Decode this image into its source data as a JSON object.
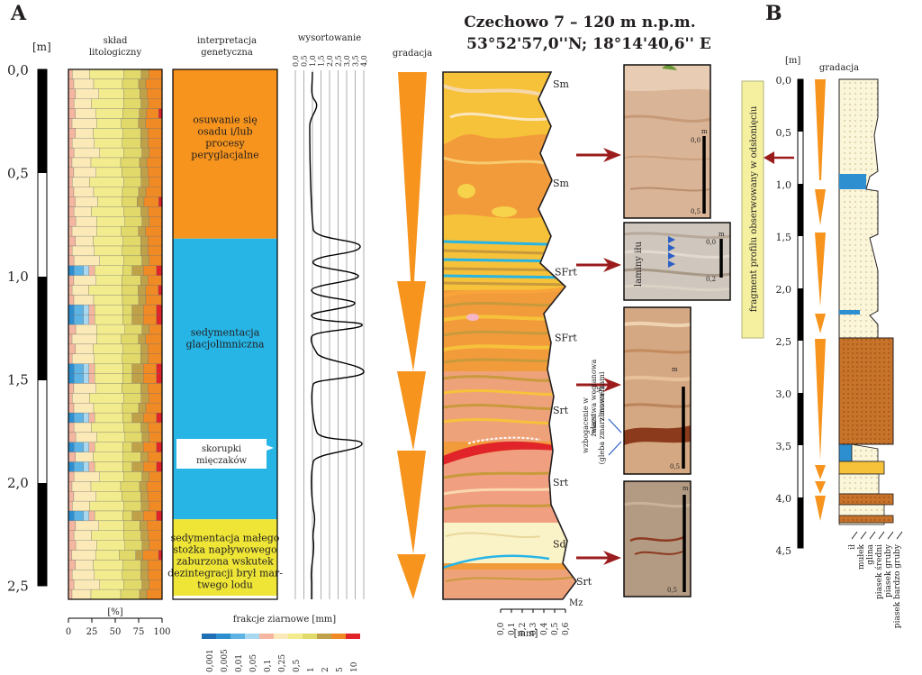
{
  "panel_a": {
    "label": "A",
    "depth_unit": "[m]",
    "depth_ticks": [
      "0,0",
      "0,5",
      "1,0",
      "1,5",
      "2,0",
      "2,5"
    ],
    "lithology_header": [
      "skład",
      "litologiczny"
    ],
    "percent_label": "[%]",
    "percent_ticks": [
      "0",
      "25",
      "50",
      "75",
      "100"
    ],
    "interpretation_header": [
      "interpretacja",
      "genetyczna"
    ],
    "interpretation_units": [
      {
        "lines": [
          "osuwanie się",
          "osadu i/lub",
          "procesy",
          "peryglacjalne"
        ],
        "color": "#f7941d",
        "top_m": 0.0,
        "bottom_m": 0.82
      },
      {
        "lines": [
          "sedymentacja",
          "glacjolimniczna"
        ],
        "color": "#27b5e6",
        "top_m": 0.82,
        "bottom_m": 2.18
      },
      {
        "lines": [
          "sedymentacja małego",
          "stożka napływowego",
          "zaburzona wskutek",
          "dezintegracji brył mar-",
          "twego lodu"
        ],
        "color": "#eee537",
        "top_m": 2.18,
        "bottom_m": 2.55
      }
    ],
    "shell_note": [
      "skorupki",
      "mięczaków"
    ],
    "sorting_header": "wysortowanie",
    "sorting_ticks": [
      "0,0",
      "0,5",
      "1,0",
      "1,5",
      "2,0",
      "2,5",
      "3,0",
      "3,5",
      "4,0"
    ],
    "gradation_header": "gradacja",
    "grain_legend_title": "frakcje ziarnowe [mm]",
    "grain_classes": [
      {
        "label": "0,001",
        "color": "#1f6fb4"
      },
      {
        "label": "0,005",
        "color": "#2d8fd0"
      },
      {
        "label": "0,01",
        "color": "#5cb3e4"
      },
      {
        "label": "0,05",
        "color": "#a8d8ef"
      },
      {
        "label": "0,1",
        "color": "#f4b6a0"
      },
      {
        "label": "0,25",
        "color": "#fbe9b8"
      },
      {
        "label": "0,5",
        "color": "#f2ec8e"
      },
      {
        "label": "1",
        "color": "#e2d96b"
      },
      {
        "label": "2",
        "color": "#bfa14a"
      },
      {
        "label": "5",
        "color": "#f08a24"
      },
      {
        "label": "10",
        "color": "#e0242a"
      }
    ]
  },
  "section": {
    "title_line1": "Czechowo 7 – 120 m n.p.m.",
    "title_line2": "53°52'57,0''N; 18°14'40,6'' E",
    "facies": [
      {
        "code": "Sm",
        "depth_m": 0.07
      },
      {
        "code": "Sm",
        "depth_m": 0.55
      },
      {
        "code": "SFrt",
        "depth_m": 0.98
      },
      {
        "code": "SFrt",
        "depth_m": 1.3
      },
      {
        "code": "Srt",
        "depth_m": 1.65
      },
      {
        "code": "Srt",
        "depth_m": 2.0
      },
      {
        "code": "Sd",
        "depth_m": 2.3
      },
      {
        "code": "Srt",
        "depth_m": 2.48
      }
    ],
    "mz_label": "Mz",
    "mz_ticks": [
      "0,0",
      "0,1",
      "0,2",
      "0,3",
      "0,4",
      "0,5",
      "0,6"
    ],
    "mz_unit": "[mm]"
  },
  "photos": {
    "scale_unit": "m",
    "photo1": {
      "scale_top": "0,0",
      "scale_bottom": "0,5"
    },
    "photo2": {
      "label": "laminy iłu",
      "scale_top": "0,0",
      "scale_bottom": "0,2"
    },
    "photo3": {
      "scale_top": "",
      "scale_bottom": "0,5"
    },
    "photo4": {
      "scale_top": "",
      "scale_bottom": "0,5"
    },
    "annotation": [
      "wzbogacenie w",
      "żelazo",
      "(gleba zmarzlinowa?)",
      "warstwa węglanowa",
      "z muszelkami"
    ]
  },
  "panel_b": {
    "label": "B",
    "depth_unit": "[m]",
    "gradation_header": "gradacja",
    "depth_ticks": [
      "0,0",
      "0,5",
      "1,0",
      "1,5",
      "2,0",
      "2,5",
      "3,0",
      "3,5",
      "4,0",
      "4,5"
    ],
    "observed_note": "fragment profilu obserwowany w odsłonięciu",
    "grain_axis": [
      "ił",
      "mułek",
      "glina",
      "piasek średni",
      "piasek gruby",
      "piasek bardzo gruby"
    ]
  }
}
